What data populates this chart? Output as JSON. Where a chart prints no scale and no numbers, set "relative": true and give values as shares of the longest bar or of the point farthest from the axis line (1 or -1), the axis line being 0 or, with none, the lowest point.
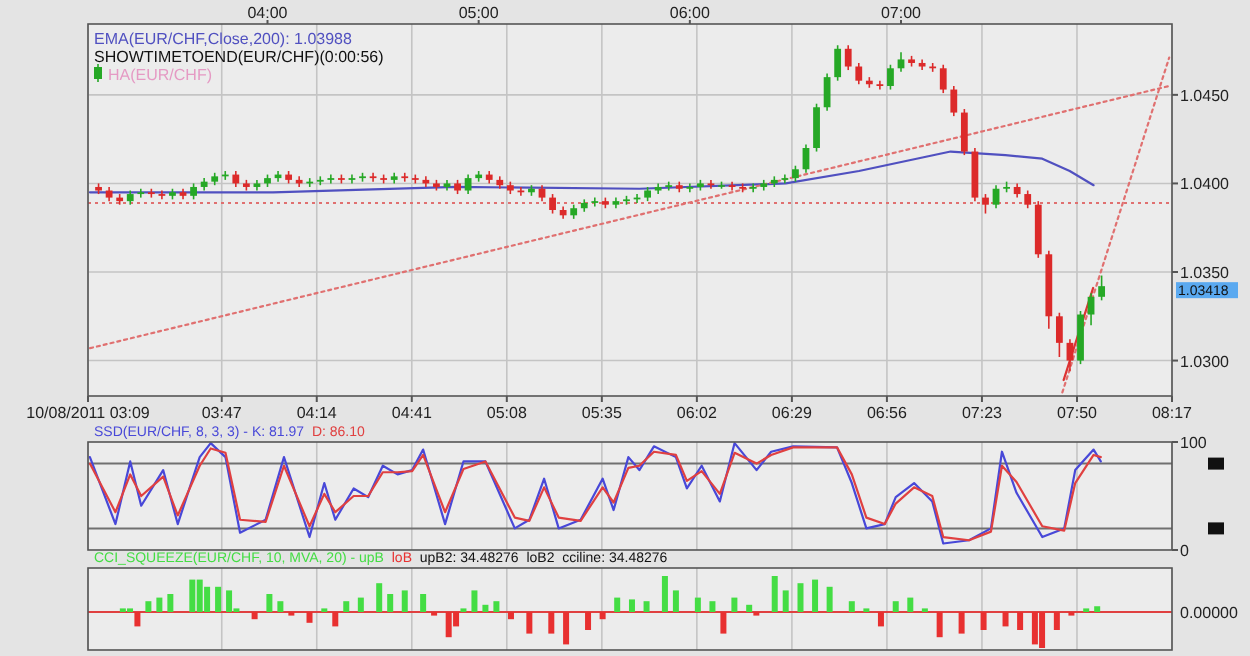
{
  "chart_data": [
    {
      "type": "candlestick",
      "legend": "top left",
      "grid": true,
      "xlim": [
        3.15,
        8.2833
      ],
      "xticks": [
        {
          "value": 3.15,
          "label": "10/08/2011 03:09"
        },
        {
          "value": 3.7833,
          "label": "03:47"
        },
        {
          "value": 4.2333,
          "label": "04:14"
        },
        {
          "value": 4.6833,
          "label": "04:41"
        },
        {
          "value": 5.1333,
          "label": "05:08"
        },
        {
          "value": 5.5833,
          "label": "05:35"
        },
        {
          "value": 6.0333,
          "label": "06:02"
        },
        {
          "value": 6.4833,
          "label": "06:29"
        },
        {
          "value": 6.9333,
          "label": "06:56"
        },
        {
          "value": 7.3833,
          "label": "07:23"
        },
        {
          "value": 7.8333,
          "label": "07:50"
        },
        {
          "value": 8.2833,
          "label": "08:17"
        }
      ],
      "x2lim": [
        3.15,
        8.2833
      ],
      "x2ticks": [
        {
          "value": 4,
          "label": "04:00"
        },
        {
          "value": 5,
          "label": "05:00"
        },
        {
          "value": 6,
          "label": "06:00"
        },
        {
          "value": 7,
          "label": "07:00"
        }
      ],
      "ylim": [
        1.028,
        1.049
      ],
      "yticks": [
        {
          "value": 1.03,
          "label": "1.0300"
        },
        {
          "value": 1.035,
          "label": "1.0350"
        },
        {
          "value": 1.04,
          "label": "1.0400"
        },
        {
          "value": 1.045,
          "label": "1.0450"
        }
      ],
      "ref_lines": [
        {
          "axis": "y",
          "value": 1.0389,
          "color": "#e07070",
          "line_style": "dotted"
        }
      ],
      "annotations": [
        "SHOWTIMETOEND(EUR/CHF)(0:00:56)",
        "1.03418"
      ],
      "series": [
        {
          "type": "line",
          "name": "EMA(EUR/CHF,Close,200): 1.03988",
          "color": "#5050c0",
          "x": [
            3.159,
            4.026,
            4.893,
            5.761,
            6.454,
            6.801,
            7.235,
            7.495,
            7.669,
            7.799,
            7.912
          ],
          "values": [
            1.0395,
            1.0395,
            1.0398,
            1.0397,
            1.04,
            1.0407,
            1.0418,
            1.0416,
            1.0414,
            1.0407,
            1.0399
          ]
        },
        {
          "type": "line",
          "color": "#e07070",
          "line_style": "dotted",
          "x": [
            3.16,
            8.27
          ],
          "values": [
            1.0307,
            1.0455
          ]
        },
        {
          "type": "line",
          "color": "#e07070",
          "line_style": "dotted",
          "x": [
            7.764,
            8.27
          ],
          "values": [
            1.0282,
            1.0471
          ]
        },
        {
          "type": "line",
          "color": "#dd3333",
          "x": [
            7.77,
            7.91
          ],
          "values": [
            1.0289,
            1.0341
          ]
        },
        {
          "type": "candlestick",
          "name": "HA(EUR/CHF)",
          "x": [
            3.2,
            3.25,
            3.3,
            3.35,
            3.4,
            3.45,
            3.5,
            3.55,
            3.6,
            3.65,
            3.7,
            3.75,
            3.8,
            3.85,
            3.9,
            3.95,
            4.0,
            4.05,
            4.1,
            4.15,
            4.2,
            4.25,
            4.3,
            4.35,
            4.4,
            4.45,
            4.5,
            4.55,
            4.6,
            4.65,
            4.7,
            4.75,
            4.8,
            4.85,
            4.9,
            4.95,
            5.0,
            5.05,
            5.1,
            5.15,
            5.2,
            5.25,
            5.3,
            5.35,
            5.4,
            5.45,
            5.5,
            5.55,
            5.6,
            5.65,
            5.7,
            5.75,
            5.8,
            5.85,
            5.9,
            5.95,
            6.0,
            6.05,
            6.1,
            6.15,
            6.2,
            6.25,
            6.3,
            6.35,
            6.4,
            6.45,
            6.5,
            6.55,
            6.6,
            6.65,
            6.7,
            6.75,
            6.8,
            6.85,
            6.9,
            6.95,
            7.0,
            7.05,
            7.1,
            7.15,
            7.2,
            7.25,
            7.3,
            7.35,
            7.4,
            7.45,
            7.5,
            7.55,
            7.6,
            7.65,
            7.7,
            7.75,
            7.8,
            7.85,
            7.9,
            7.95
          ],
          "ohlc": [
            [
              1.0398,
              1.04,
              1.0394,
              1.0396
            ],
            [
              1.0396,
              1.0398,
              1.039,
              1.0392
            ],
            [
              1.0392,
              1.0394,
              1.0388,
              1.039
            ],
            [
              1.039,
              1.0396,
              1.0388,
              1.0394
            ],
            [
              1.0394,
              1.0397,
              1.0392,
              1.0395
            ],
            [
              1.0395,
              1.0397,
              1.0392,
              1.0394
            ],
            [
              1.0394,
              1.0396,
              1.0391,
              1.0393
            ],
            [
              1.0393,
              1.0397,
              1.0391,
              1.0395
            ],
            [
              1.0395,
              1.0397,
              1.0391,
              1.0393
            ],
            [
              1.0393,
              1.04,
              1.0391,
              1.0398
            ],
            [
              1.0398,
              1.0403,
              1.0396,
              1.0401
            ],
            [
              1.0401,
              1.0406,
              1.0399,
              1.0404
            ],
            [
              1.0404,
              1.0407,
              1.0402,
              1.0405
            ],
            [
              1.0405,
              1.0407,
              1.0398,
              1.04
            ],
            [
              1.04,
              1.0402,
              1.0396,
              1.0398
            ],
            [
              1.0398,
              1.0402,
              1.0396,
              1.04
            ],
            [
              1.04,
              1.0405,
              1.0398,
              1.0403
            ],
            [
              1.0403,
              1.0407,
              1.0401,
              1.0405
            ],
            [
              1.0405,
              1.0407,
              1.04,
              1.0402
            ],
            [
              1.0402,
              1.0404,
              1.0398,
              1.04
            ],
            [
              1.04,
              1.0403,
              1.0398,
              1.0401
            ],
            [
              1.0401,
              1.0404,
              1.0399,
              1.0402
            ],
            [
              1.0402,
              1.0405,
              1.04,
              1.0403
            ],
            [
              1.0403,
              1.0405,
              1.04,
              1.0402
            ],
            [
              1.0402,
              1.0405,
              1.04,
              1.0403
            ],
            [
              1.0403,
              1.0406,
              1.0401,
              1.0404
            ],
            [
              1.0404,
              1.0406,
              1.0401,
              1.0403
            ],
            [
              1.0403,
              1.0405,
              1.04,
              1.0402
            ],
            [
              1.0402,
              1.0406,
              1.04,
              1.0404
            ],
            [
              1.0404,
              1.0406,
              1.0401,
              1.0403
            ],
            [
              1.0403,
              1.0405,
              1.04,
              1.0402
            ],
            [
              1.0402,
              1.0404,
              1.0398,
              1.04
            ],
            [
              1.04,
              1.0402,
              1.0396,
              1.0398
            ],
            [
              1.0398,
              1.0402,
              1.0396,
              1.04
            ],
            [
              1.04,
              1.0402,
              1.0394,
              1.0396
            ],
            [
              1.0396,
              1.0405,
              1.0394,
              1.0403
            ],
            [
              1.0403,
              1.0407,
              1.0401,
              1.0405
            ],
            [
              1.0405,
              1.0407,
              1.04,
              1.0402
            ],
            [
              1.0402,
              1.0404,
              1.0397,
              1.0399
            ],
            [
              1.0399,
              1.0401,
              1.0394,
              1.0396
            ],
            [
              1.0396,
              1.0398,
              1.0393,
              1.0395
            ],
            [
              1.0395,
              1.0399,
              1.0393,
              1.0397
            ],
            [
              1.0397,
              1.0399,
              1.039,
              1.0392
            ],
            [
              1.0392,
              1.0394,
              1.0383,
              1.0385
            ],
            [
              1.0385,
              1.0387,
              1.038,
              1.0382
            ],
            [
              1.0382,
              1.0388,
              1.038,
              1.0386
            ],
            [
              1.0386,
              1.0391,
              1.0384,
              1.0389
            ],
            [
              1.0389,
              1.0392,
              1.0387,
              1.039
            ],
            [
              1.039,
              1.0392,
              1.0386,
              1.0388
            ],
            [
              1.0388,
              1.0392,
              1.0386,
              1.039
            ],
            [
              1.039,
              1.0393,
              1.0388,
              1.0391
            ],
            [
              1.0391,
              1.0394,
              1.0389,
              1.0392
            ],
            [
              1.0392,
              1.0398,
              1.039,
              1.0396
            ],
            [
              1.0396,
              1.04,
              1.0394,
              1.0398
            ],
            [
              1.0398,
              1.0401,
              1.0396,
              1.0399
            ],
            [
              1.0399,
              1.0401,
              1.0395,
              1.0397
            ],
            [
              1.0397,
              1.04,
              1.0395,
              1.0398
            ],
            [
              1.0398,
              1.0402,
              1.0396,
              1.04
            ],
            [
              1.04,
              1.0402,
              1.0397,
              1.0399
            ],
            [
              1.0399,
              1.0401,
              1.0397,
              1.0399
            ],
            [
              1.0399,
              1.0401,
              1.0396,
              1.0398
            ],
            [
              1.0398,
              1.04,
              1.0395,
              1.0397
            ],
            [
              1.0397,
              1.04,
              1.0395,
              1.0398
            ],
            [
              1.0398,
              1.0402,
              1.0396,
              1.04
            ],
            [
              1.04,
              1.0404,
              1.0398,
              1.0402
            ],
            [
              1.0402,
              1.0405,
              1.04,
              1.0403
            ],
            [
              1.0403,
              1.041,
              1.0401,
              1.0408
            ],
            [
              1.0408,
              1.0422,
              1.0406,
              1.042
            ],
            [
              1.042,
              1.0445,
              1.0418,
              1.0443
            ],
            [
              1.0443,
              1.0462,
              1.0441,
              1.046
            ],
            [
              1.046,
              1.0478,
              1.0458,
              1.0476
            ],
            [
              1.0476,
              1.0478,
              1.0464,
              1.0466
            ],
            [
              1.0466,
              1.0468,
              1.0456,
              1.0458
            ],
            [
              1.0458,
              1.046,
              1.0454,
              1.0456
            ],
            [
              1.0456,
              1.0458,
              1.0453,
              1.0455
            ],
            [
              1.0455,
              1.0467,
              1.0453,
              1.0465
            ],
            [
              1.0465,
              1.0474,
              1.0463,
              1.047
            ],
            [
              1.047,
              1.0472,
              1.0466,
              1.0468
            ],
            [
              1.0468,
              1.047,
              1.0464,
              1.0466
            ],
            [
              1.0466,
              1.0468,
              1.0463,
              1.0465
            ],
            [
              1.0465,
              1.0467,
              1.0451,
              1.0453
            ],
            [
              1.0453,
              1.0455,
              1.0438,
              1.044
            ],
            [
              1.044,
              1.0442,
              1.0416,
              1.0418
            ],
            [
              1.0418,
              1.042,
              1.039,
              1.0392
            ],
            [
              1.0392,
              1.0394,
              1.0383,
              1.0388
            ],
            [
              1.0388,
              1.0399,
              1.0386,
              1.0397
            ],
            [
              1.0397,
              1.0401,
              1.0395,
              1.0398
            ],
            [
              1.0398,
              1.04,
              1.0392,
              1.0394
            ],
            [
              1.0394,
              1.0396,
              1.0386,
              1.0388
            ],
            [
              1.0388,
              1.039,
              1.0358,
              1.036
            ],
            [
              1.036,
              1.0362,
              1.0318,
              1.0325
            ],
            [
              1.0325,
              1.0327,
              1.0302,
              1.031
            ],
            [
              1.031,
              1.0312,
              1.0294,
              1.03
            ],
            [
              1.03,
              1.0328,
              1.0298,
              1.0326
            ],
            [
              1.0326,
              1.0338,
              1.032,
              1.0336
            ],
            [
              1.0336,
              1.0348,
              1.0334,
              1.0342
            ]
          ]
        }
      ]
    },
    {
      "type": "line",
      "title": "SSD(EUR/CHF, 8, 3, 3) -",
      "legend": "top left",
      "grid": "x",
      "tick_labels": "y",
      "xlim": [
        3.15,
        8.2833
      ],
      "xticks": [
        {
          "value": 3.15,
          "label": null
        },
        {
          "value": 3.7833,
          "label": null
        },
        {
          "value": 4.2333,
          "label": null
        },
        {
          "value": 4.6833,
          "label": null
        },
        {
          "value": 5.1333,
          "label": null
        },
        {
          "value": 5.5833,
          "label": null
        },
        {
          "value": 6.0333,
          "label": null
        },
        {
          "value": 6.4833,
          "label": null
        },
        {
          "value": 6.9333,
          "label": null
        },
        {
          "value": 7.3833,
          "label": null
        },
        {
          "value": 7.8333,
          "label": null
        },
        {
          "value": 8.2833,
          "label": null
        }
      ],
      "ylim": [
        0,
        100
      ],
      "yticks": [
        0,
        100
      ],
      "ref_lines": [
        {
          "axis": "y",
          "value": 20,
          "color": "#707070"
        },
        {
          "axis": "y",
          "value": 80,
          "color": "#707070"
        }
      ],
      "x": [
        3.159,
        3.28,
        3.35,
        3.402,
        3.506,
        3.575,
        3.679,
        3.731,
        3.801,
        3.87,
        3.991,
        4.078,
        4.199,
        4.269,
        4.321,
        4.408,
        4.477,
        4.546,
        4.616,
        4.685,
        4.737,
        4.841,
        4.928,
        5.032,
        5.171,
        5.24,
        5.31,
        5.379,
        5.483,
        5.587,
        5.639,
        5.709,
        5.761,
        5.83,
        5.934,
        5.986,
        6.056,
        6.142,
        6.212,
        6.316,
        6.385,
        6.489,
        6.697,
        6.767,
        6.836,
        6.923,
        6.975,
        7.062,
        7.148,
        7.2,
        7.322,
        7.426,
        7.478,
        7.547,
        7.669,
        7.773,
        7.825,
        7.912,
        7.946
      ],
      "series": [
        {
          "name": "K: 81.97",
          "color": "#4848d8",
          "values": [
            86,
            24,
            82,
            41,
            74,
            24,
            86,
            99,
            86,
            16,
            28,
            86,
            12,
            62,
            28,
            57,
            49,
            78,
            70,
            74,
            93,
            24,
            82,
            82,
            20,
            28,
            66,
            20,
            28,
            66,
            37,
            86,
            74,
            96,
            86,
            57,
            78,
            45,
            99,
            74,
            91,
            96,
            95,
            62,
            20,
            24,
            49,
            62,
            45,
            6,
            9,
            20,
            91,
            53,
            12,
            20,
            74,
            93,
            82
          ]
        },
        {
          "name": "D: 86.10",
          "color": "#e04040",
          "values": [
            80,
            35,
            70,
            50,
            68,
            32,
            78,
            94,
            90,
            28,
            26,
            78,
            22,
            52,
            35,
            50,
            50,
            72,
            72,
            73,
            88,
            35,
            75,
            82,
            30,
            27,
            58,
            30,
            27,
            58,
            44,
            76,
            78,
            91,
            88,
            64,
            73,
            52,
            90,
            80,
            88,
            95,
            95,
            70,
            30,
            24,
            43,
            58,
            50,
            12,
            9,
            17,
            78,
            63,
            22,
            18,
            62,
            88,
            86
          ]
        }
      ]
    },
    {
      "type": "bar",
      "title": "CCI_SQUEEZE(EUR/CHF, 10, MVA, 20) -",
      "legend": "top",
      "grid": "x",
      "tick_labels": false,
      "relative": true,
      "xlim": [
        3.15,
        8.2833
      ],
      "xticks": [
        {
          "value": 3.15,
          "label": null
        },
        {
          "value": 3.7833,
          "label": null
        },
        {
          "value": 4.2333,
          "label": null
        },
        {
          "value": 4.6833,
          "label": null
        },
        {
          "value": 5.1333,
          "label": null
        },
        {
          "value": 5.5833,
          "label": null
        },
        {
          "value": 6.0333,
          "label": null
        },
        {
          "value": 6.4833,
          "label": null
        },
        {
          "value": 6.9333,
          "label": null
        },
        {
          "value": 7.3833,
          "label": null
        },
        {
          "value": 7.8333,
          "label": null
        },
        {
          "value": 8.2833,
          "label": null
        }
      ],
      "ref_lines": [
        {
          "axis": "y",
          "value": 0,
          "label": "0.00000",
          "color": "#e04040"
        }
      ],
      "annotations": [
        "upB2: 34.48276",
        "loB2",
        "cciline: 34.48276"
      ],
      "x": [
        3.315,
        3.349,
        3.384,
        3.436,
        3.488,
        3.54,
        3.644,
        3.679,
        3.714,
        3.766,
        3.818,
        3.853,
        3.939,
        4.009,
        4.061,
        4.113,
        4.199,
        4.269,
        4.321,
        4.373,
        4.442,
        4.529,
        4.581,
        4.65,
        4.737,
        4.789,
        4.858,
        4.893,
        4.928,
        4.98,
        5.032,
        5.084,
        5.153,
        5.24,
        5.344,
        5.414,
        5.518,
        5.587,
        5.656,
        5.726,
        5.795,
        5.882,
        5.934,
        6.038,
        6.107,
        6.159,
        6.211,
        6.281,
        6.315,
        6.402,
        6.454,
        6.524,
        6.593,
        6.662,
        6.767,
        6.836,
        6.905,
        6.975,
        7.044,
        7.113,
        7.183,
        7.287,
        7.391,
        7.495,
        7.564,
        7.634,
        7.668,
        7.738,
        7.807,
        7.877,
        7.929
      ],
      "series": [
        {
          "name": "upB",
          "color": "#44dd44",
          "values": [
            0.1,
            0.1,
            null,
            0.3,
            0.4,
            0.5,
            0.9,
            0.9,
            0.7,
            0.7,
            0.6,
            0.1,
            null,
            0.5,
            0.3,
            null,
            null,
            0.1,
            null,
            0.3,
            0.4,
            0.8,
            0.5,
            0.6,
            0.5,
            null,
            null,
            null,
            0.1,
            0.6,
            0.2,
            0.3,
            null,
            null,
            null,
            null,
            null,
            null,
            0.4,
            0.35,
            0.3,
            1,
            0.6,
            0.4,
            0.3,
            null,
            0.4,
            0.2,
            null,
            1,
            0.6,
            0.8,
            0.9,
            0.7,
            0.3,
            0.1,
            null,
            0.3,
            0.4,
            0.1,
            null,
            null,
            null,
            null,
            null,
            null,
            null,
            null,
            null,
            0.1,
            0.16
          ]
        },
        {
          "name": "loB",
          "color": "#e83030",
          "values": [
            null,
            null,
            -0.4,
            null,
            null,
            null,
            null,
            null,
            null,
            null,
            null,
            null,
            -0.2,
            null,
            null,
            -0.1,
            -0.3,
            null,
            -0.4,
            null,
            null,
            null,
            null,
            null,
            null,
            -0.1,
            -0.7,
            -0.4,
            null,
            null,
            null,
            null,
            -0.2,
            -0.6,
            -0.6,
            -0.9,
            -0.5,
            -0.2,
            null,
            null,
            null,
            null,
            null,
            null,
            null,
            -0.6,
            null,
            null,
            -0.1,
            null,
            null,
            null,
            null,
            null,
            null,
            null,
            -0.4,
            null,
            null,
            null,
            -0.7,
            -0.6,
            -0.5,
            -0.4,
            -0.5,
            -0.9,
            -1,
            -0.5,
            -0.1,
            null,
            null
          ]
        }
      ]
    }
  ]
}
